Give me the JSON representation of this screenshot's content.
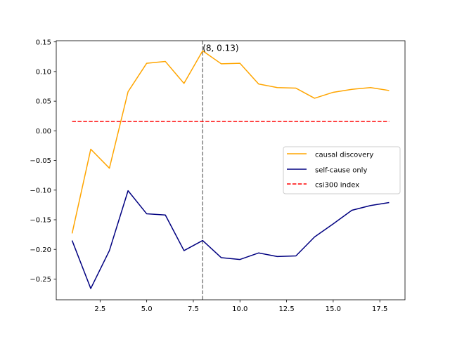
{
  "chart_data": {
    "type": "line",
    "title": "",
    "xlabel": "",
    "ylabel": "",
    "xlim": [
      0.15,
      18.85
    ],
    "ylim": [
      -0.285,
      0.152
    ],
    "grid": false,
    "legend_placement": "center-right",
    "x": [
      1,
      2,
      3,
      4,
      5,
      6,
      7,
      8,
      9,
      10,
      11,
      12,
      13,
      14,
      15,
      16,
      17,
      18
    ],
    "series": [
      {
        "name": "causal discovery",
        "color": "#ffa500",
        "style": "solid",
        "values": [
          -0.173,
          -0.031,
          -0.063,
          0.066,
          0.114,
          0.117,
          0.08,
          0.135,
          0.113,
          0.114,
          0.079,
          0.073,
          0.072,
          0.055,
          0.065,
          0.07,
          0.073,
          0.068
        ]
      },
      {
        "name": "self-cause only",
        "color": "#000080",
        "style": "solid",
        "values": [
          -0.185,
          -0.266,
          -0.202,
          -0.101,
          -0.14,
          -0.142,
          -0.202,
          -0.185,
          -0.214,
          -0.217,
          -0.206,
          -0.212,
          -0.211,
          -0.179,
          -0.157,
          -0.134,
          -0.126,
          -0.121
        ]
      },
      {
        "name": "csi300 index",
        "color": "#ff0000",
        "style": "dashed",
        "values": [
          0.016,
          0.016,
          0.016,
          0.016,
          0.016,
          0.016,
          0.016,
          0.016,
          0.016,
          0.016,
          0.016,
          0.016,
          0.016,
          0.016,
          0.016,
          0.016,
          0.016,
          0.016
        ]
      }
    ],
    "xticks": [
      {
        "value": 2.5,
        "label": "2.5"
      },
      {
        "value": 5.0,
        "label": "5.0"
      },
      {
        "value": 7.5,
        "label": "7.5"
      },
      {
        "value": 10.0,
        "label": "10.0"
      },
      {
        "value": 12.5,
        "label": "12.5"
      },
      {
        "value": 15.0,
        "label": "15.0"
      },
      {
        "value": 17.5,
        "label": "17.5"
      }
    ],
    "yticks": [
      {
        "value": 0.15,
        "label": "0.15"
      },
      {
        "value": 0.1,
        "label": "0.10"
      },
      {
        "value": 0.05,
        "label": "0.05"
      },
      {
        "value": 0.0,
        "label": "0.00"
      },
      {
        "value": -0.05,
        "label": "−0.05"
      },
      {
        "value": -0.1,
        "label": "−0.10"
      },
      {
        "value": -0.15,
        "label": "−0.15"
      },
      {
        "value": -0.2,
        "label": "−0.20"
      },
      {
        "value": -0.25,
        "label": "−0.25"
      }
    ],
    "vline": {
      "x": 8,
      "color": "#808080",
      "style": "dashed"
    },
    "annotation": {
      "text": "(8, 0.13)",
      "x": 8,
      "y": 0.13
    }
  }
}
